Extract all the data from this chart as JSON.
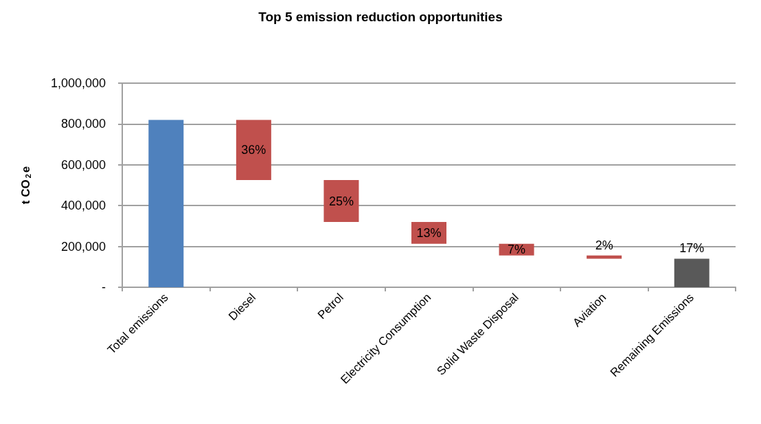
{
  "chart_data": {
    "type": "bar",
    "title": "Top 5 emission reduction opportunities",
    "ylabel": "t CO$_{2}$e",
    "categories": [
      "Total emissions",
      "Diesel",
      "Petrol",
      "Electricity Consumption",
      "Solid Waste Disposal",
      "Aviation",
      "Remaining Emissions"
    ],
    "values": [
      820000,
      295000,
      205000,
      107000,
      57000,
      16000,
      140000
    ],
    "base": [
      0,
      525000,
      320000,
      213000,
      156000,
      140000,
      0
    ],
    "colors": [
      "#4f81bd",
      "#c0504d",
      "#c0504d",
      "#c0504d",
      "#c0504d",
      "#c0504d",
      "#595959"
    ],
    "annotations": [
      {
        "text": "36%",
        "x": "Diesel",
        "y": 820000
      },
      {
        "text": "25%",
        "x": "Petrol",
        "y": 525000
      },
      {
        "text": "13%",
        "x": "Electricity Consumption",
        "y": 320000
      },
      {
        "text": "7%",
        "x": "Solid Waste Disposal",
        "y": 213000
      },
      {
        "text": "2%",
        "x": "Aviation",
        "y": 156000
      },
      {
        "text": "17%",
        "x": "Remaining Emissions",
        "y": 140000
      }
    ],
    "ylim": [
      0,
      1000000
    ],
    "yticks": [
      {
        "value": 0,
        "label": "-"
      },
      {
        "value": 200000,
        "label": "200,000"
      },
      {
        "value": 400000,
        "label": "400,000"
      },
      {
        "value": 600000,
        "label": "600,000"
      },
      {
        "value": 800000,
        "label": "800,000"
      },
      {
        "value": 1000000,
        "label": "1,000,000"
      }
    ],
    "grid": "y"
  }
}
